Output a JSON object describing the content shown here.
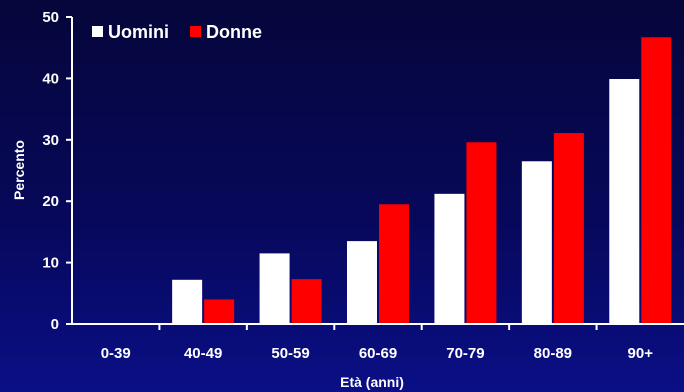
{
  "chart_data": {
    "type": "bar",
    "categories": [
      "0-39",
      "40-49",
      "50-59",
      "60-69",
      "70-79",
      "80-89",
      "90+"
    ],
    "series": [
      {
        "name": "Uomini",
        "color": "#ffffff",
        "values": [
          0,
          7.2,
          11.5,
          13.5,
          21.2,
          26.5,
          39.9
        ]
      },
      {
        "name": "Donne",
        "color": "#ff0000",
        "values": [
          0,
          4.0,
          7.3,
          19.5,
          29.6,
          31.1,
          46.7
        ]
      }
    ],
    "yticks": [
      0,
      10,
      20,
      30,
      40,
      50
    ],
    "ylim": [
      0,
      50
    ],
    "xlabel": "Età (anni)",
    "ylabel": "Percento",
    "legend_position": "top-left",
    "grid": false
  }
}
